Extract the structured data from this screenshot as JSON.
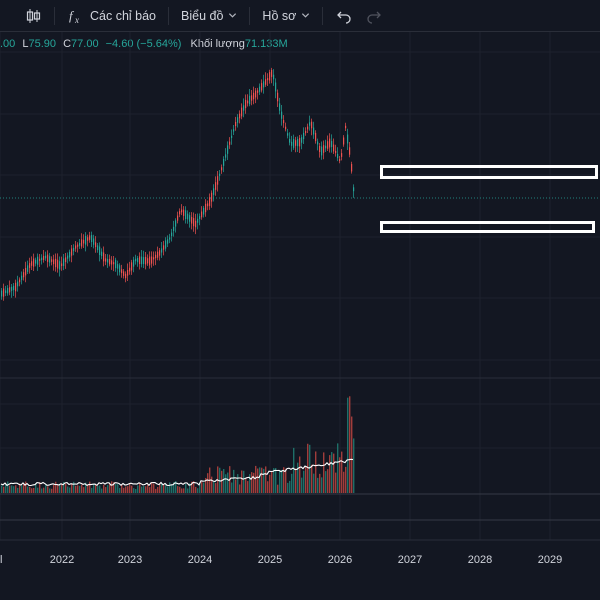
{
  "toolbar": {
    "indicators_label": "Các chỉ báo",
    "chart_label": "Biểu đồ",
    "profile_label": "Hồ sơ",
    "icons": [
      "candles-icon",
      "fx-icon",
      "chevron-down-icon",
      "undo-icon",
      "redo-icon"
    ]
  },
  "legend": {
    "open_partial": ".00",
    "low_label": "L",
    "low_value": "75.90",
    "close_label": "C",
    "close_value": "77.00",
    "change": "−4.60 (−5.64%)",
    "volume_label": "Khối lượng",
    "volume_value": "71.133M"
  },
  "xaxis": {
    "labels": [
      "2022",
      "2023",
      "2024",
      "2025",
      "2026",
      "2027",
      "2028",
      "2029"
    ]
  },
  "colors": {
    "background": "#131722",
    "up": "#26a69a",
    "down": "#ef5350",
    "grid": "#1e222d",
    "ma_line": "#ffffff"
  }
}
